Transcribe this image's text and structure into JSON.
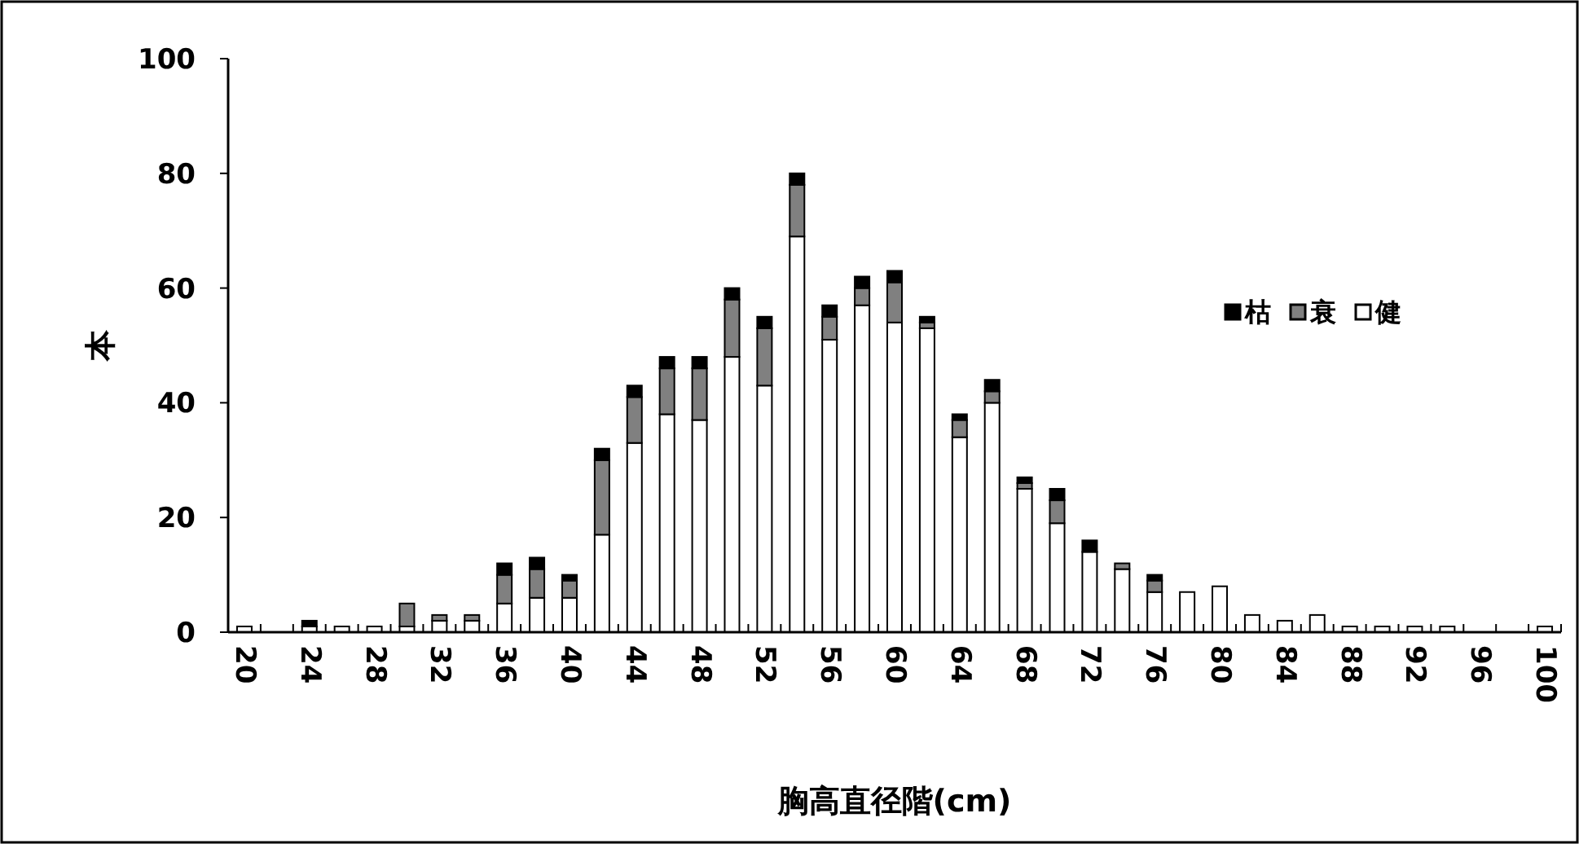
{
  "chart_data": {
    "type": "bar",
    "stacked": true,
    "xlabel": "胸高直径階(cm)",
    "ylabel": "本",
    "categories": [
      "20",
      null,
      "24",
      null,
      "28",
      null,
      "32",
      null,
      "36",
      null,
      "40",
      null,
      "44",
      null,
      "48",
      null,
      "52",
      null,
      "56",
      null,
      "60",
      null,
      "64",
      null,
      "68",
      null,
      "72",
      null,
      "76",
      null,
      "80",
      null,
      "84",
      null,
      "88",
      null,
      "92",
      null,
      "96",
      null,
      "100"
    ],
    "series": [
      {
        "name": "健",
        "color": "#ffffff",
        "values": [
          1,
          0,
          1,
          1,
          1,
          1,
          2,
          2,
          5,
          6,
          6,
          17,
          33,
          38,
          37,
          48,
          43,
          69,
          51,
          57,
          54,
          53,
          34,
          40,
          25,
          19,
          14,
          11,
          7,
          7,
          8,
          3,
          2,
          3,
          1,
          1,
          1,
          1,
          0,
          0,
          1
        ]
      },
      {
        "name": "衰",
        "color": "#808080",
        "values": [
          0,
          0,
          0,
          0,
          0,
          4,
          1,
          1,
          5,
          5,
          3,
          13,
          8,
          8,
          9,
          10,
          10,
          9,
          4,
          3,
          7,
          1,
          3,
          2,
          1,
          4,
          0,
          1,
          2,
          0,
          0,
          0,
          0,
          0,
          0,
          0,
          0,
          0,
          0,
          0,
          0
        ]
      },
      {
        "name": "枯",
        "color": "#000000",
        "values": [
          0,
          0,
          1,
          0,
          0,
          0,
          0,
          0,
          2,
          2,
          1,
          2,
          2,
          2,
          2,
          2,
          2,
          2,
          2,
          2,
          2,
          1,
          1,
          2,
          1,
          2,
          2,
          0,
          1,
          0,
          0,
          0,
          0,
          0,
          0,
          0,
          0,
          0,
          0,
          0,
          0
        ]
      }
    ],
    "ylim": [
      0,
      100
    ],
    "yticks": [
      0,
      20,
      40,
      60,
      80,
      100
    ],
    "legend": "right"
  }
}
